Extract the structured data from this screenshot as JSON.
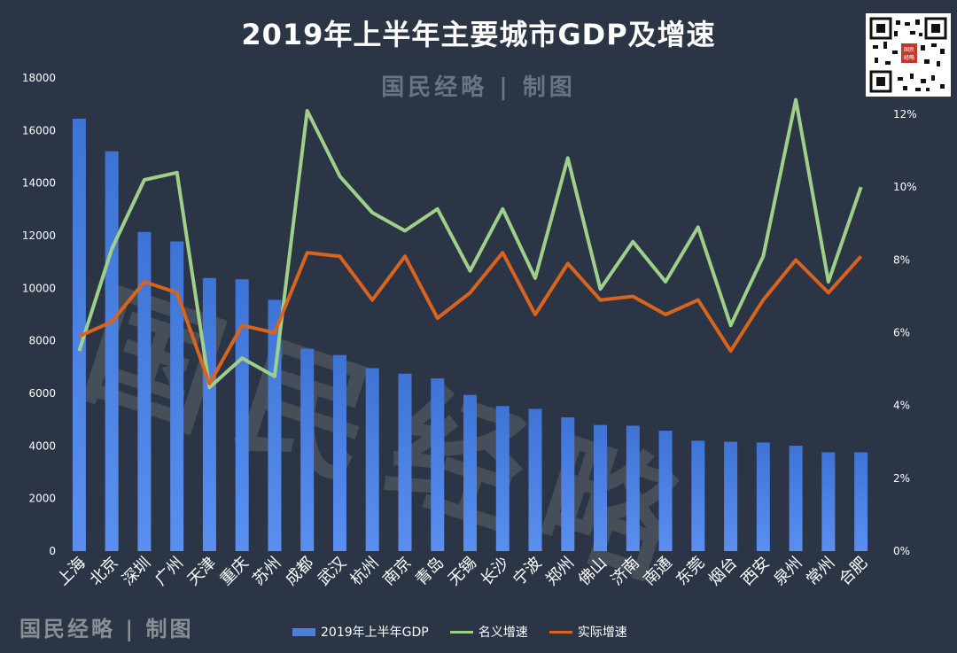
{
  "title": "2019年上半年主要城市GDP及增速",
  "watermark": "国民经略 | 制图",
  "watermark_big": "国民经略",
  "qr_stamp": "国民经略",
  "chart_data": {
    "type": "bar+line",
    "title": "2019年上半年主要城市GDP及增速",
    "categories": [
      "上海",
      "北京",
      "深圳",
      "广州",
      "天津",
      "重庆",
      "苏州",
      "成都",
      "武汉",
      "杭州",
      "南京",
      "青岛",
      "无锡",
      "长沙",
      "宁波",
      "郑州",
      "佛山",
      "济南",
      "南通",
      "东莞",
      "烟台",
      "西安",
      "泉州",
      "常州",
      "合肥"
    ],
    "series": [
      {
        "name": "2019年上半年GDP",
        "type": "bar",
        "axis": "left",
        "color": "#4a7fdc",
        "values": [
          16450,
          15210,
          12140,
          11780,
          10390,
          10340,
          9560,
          7700,
          7460,
          6960,
          6750,
          6570,
          5940,
          5520,
          5410,
          5090,
          4800,
          4770,
          4580,
          4200,
          4160,
          4130,
          4010,
          3760,
          3760
        ]
      },
      {
        "name": "名义增速",
        "type": "line",
        "axis": "right",
        "color": "#9fd08a",
        "values": [
          5.5,
          8.3,
          10.2,
          10.4,
          4.5,
          5.3,
          4.8,
          12.1,
          10.3,
          9.3,
          8.8,
          9.4,
          7.7,
          9.4,
          7.5,
          10.8,
          7.2,
          8.5,
          7.4,
          8.9,
          6.2,
          8.1,
          12.4,
          7.4,
          10.0
        ]
      },
      {
        "name": "实际增速",
        "type": "line",
        "axis": "right",
        "color": "#d8641e",
        "values": [
          5.9,
          6.3,
          7.4,
          7.1,
          4.6,
          6.2,
          6.0,
          8.2,
          8.1,
          6.9,
          8.1,
          6.4,
          7.1,
          8.2,
          6.5,
          7.9,
          6.9,
          7.0,
          6.5,
          6.9,
          5.5,
          6.9,
          8.0,
          7.1,
          8.1
        ]
      }
    ],
    "yleft": {
      "min": 0,
      "max": 18000,
      "step": 2000,
      "ticks": [
        "0",
        "2000",
        "4000",
        "6000",
        "8000",
        "10000",
        "12000",
        "14000",
        "16000",
        "18000"
      ]
    },
    "yright": {
      "min": 0,
      "max": 13,
      "ticks_values": [
        0,
        2,
        4,
        6,
        8,
        10,
        12
      ],
      "ticks": [
        "0%",
        "2%",
        "4%",
        "6%",
        "8%",
        "10%",
        "12%"
      ]
    },
    "legend": [
      "2019年上半年GDP",
      "名义增速",
      "实际增速"
    ],
    "grid": false
  }
}
